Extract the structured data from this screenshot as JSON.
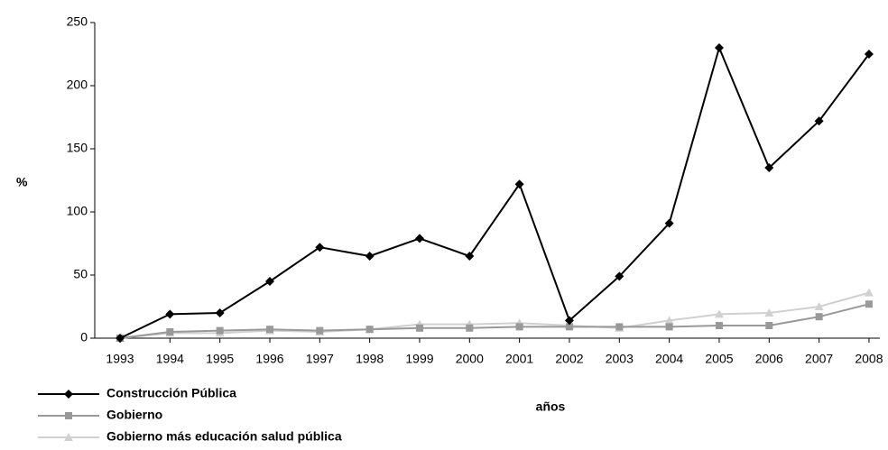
{
  "chart_data": {
    "type": "line",
    "x_label": "años",
    "y_label": "%",
    "categories": [
      "1993",
      "1994",
      "1995",
      "1996",
      "1997",
      "1998",
      "1999",
      "2000",
      "2001",
      "2002",
      "2003",
      "2004",
      "2005",
      "2006",
      "2007",
      "2008"
    ],
    "series": [
      {
        "name": "Construcción Pública",
        "color": "#000000",
        "marker": "diamond",
        "values": [
          0,
          19,
          20,
          45,
          72,
          65,
          79,
          65,
          122,
          14,
          49,
          91,
          230,
          135,
          172,
          225
        ]
      },
      {
        "name": "Gobierno",
        "color": "#999999",
        "marker": "square",
        "values": [
          0,
          5,
          6,
          7,
          6,
          7,
          8,
          8,
          9,
          9,
          9,
          9,
          10,
          10,
          17,
          27
        ]
      },
      {
        "name": "Gobierno más educación salud pública",
        "color": "#d0d0d0",
        "marker": "triangle",
        "values": [
          0,
          4,
          4,
          6,
          5,
          7,
          11,
          11,
          12,
          10,
          8,
          14,
          19,
          20,
          25,
          36
        ]
      }
    ],
    "ylim": [
      0,
      250
    ],
    "yticks": [
      0,
      50,
      100,
      150,
      200,
      250
    ],
    "grid": false,
    "legend": "bottom-left"
  }
}
